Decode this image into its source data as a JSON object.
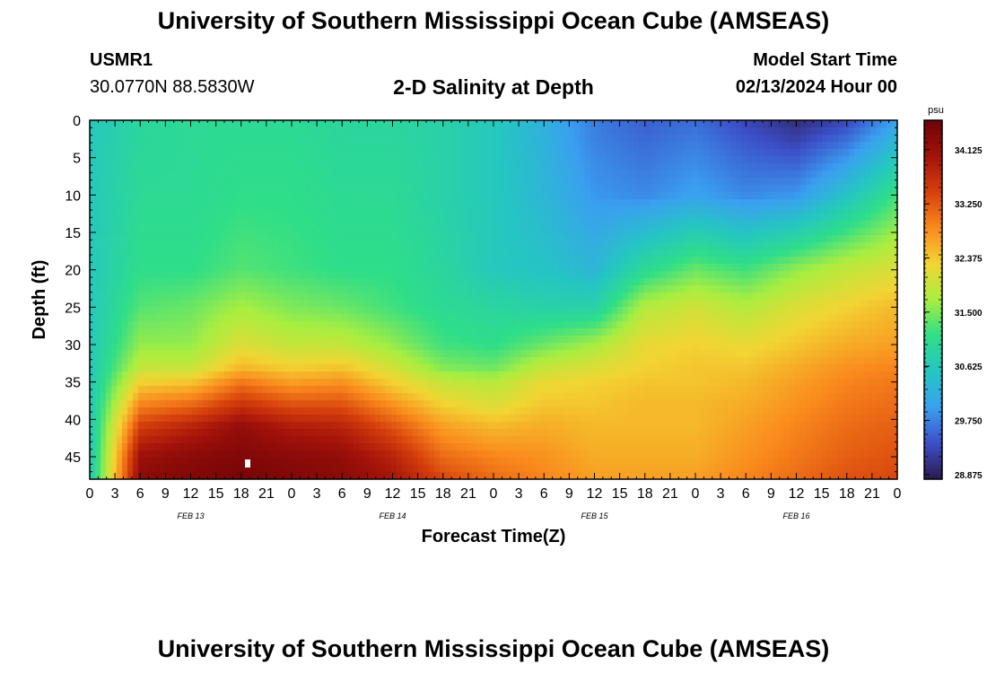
{
  "header": {
    "title": "University of Southern Mississippi Ocean Cube (AMSEAS)",
    "station": "USMR1",
    "coords": "30.0770N  88.5830W",
    "subtitle": "2-D Salinity at Depth",
    "model_start_label": "Model Start Time",
    "model_start_value": "02/13/2024 Hour 00"
  },
  "footer": {
    "title": "University of Southern Mississippi Ocean Cube (AMSEAS)"
  },
  "chart_data": {
    "type": "heatmap",
    "title": "2-D Salinity at Depth",
    "xlabel": "Forecast Time(Z)",
    "ylabel": "Depth (ft)",
    "x_tick_labels": [
      "0",
      "3",
      "6",
      "9",
      "12",
      "15",
      "18",
      "21",
      "0",
      "3",
      "6",
      "9",
      "12",
      "15",
      "18",
      "21",
      "0",
      "3",
      "6",
      "9",
      "12",
      "15",
      "18",
      "21",
      "0",
      "3",
      "6",
      "9",
      "12",
      "15",
      "18",
      "21",
      "0"
    ],
    "date_labels": [
      {
        "label": "FEB 13",
        "hour": 12
      },
      {
        "label": "FEB 14",
        "hour": 36
      },
      {
        "label": "FEB 15",
        "hour": 60
      },
      {
        "label": "FEB 16",
        "hour": 84
      }
    ],
    "xlim": [
      0,
      96
    ],
    "ylim": [
      0,
      48
    ],
    "y_ticks": [
      0,
      5,
      10,
      15,
      20,
      25,
      30,
      35,
      40,
      45
    ],
    "colorbar": {
      "unit": "psu",
      "range": [
        28.8,
        34.6
      ],
      "ticks": [
        "34.125",
        "33.250",
        "32.375",
        "31.500",
        "30.625",
        "29.750",
        "28.875"
      ],
      "colors": [
        "#2d1a4e",
        "#3c4fc8",
        "#3aa0f0",
        "#25c6c2",
        "#2fde88",
        "#a9ee40",
        "#f2d533",
        "#fa8a1d",
        "#d6400c",
        "#a4120a",
        "#6e0306"
      ]
    },
    "time_hours": [
      0,
      6,
      12,
      18,
      24,
      30,
      36,
      42,
      48,
      54,
      60,
      66,
      72,
      78,
      84,
      90,
      96
    ],
    "depths_ft": [
      0,
      10,
      20,
      25,
      30,
      33,
      35,
      38,
      41,
      45,
      48
    ],
    "salinity_psu": [
      [
        30.6,
        30.6,
        30.6,
        30.6,
        30.6,
        30.6,
        30.6,
        30.6,
        30.6,
        30.6,
        30.6
      ],
      [
        30.9,
        31.0,
        31.1,
        31.3,
        31.6,
        31.9,
        32.3,
        32.9,
        33.5,
        34.1,
        34.3
      ],
      [
        31.0,
        31.0,
        31.1,
        31.4,
        31.6,
        31.9,
        32.4,
        33.1,
        33.8,
        34.3,
        34.4
      ],
      [
        31.0,
        31.1,
        31.3,
        31.7,
        32.1,
        32.5,
        33.0,
        33.6,
        34.2,
        34.4,
        34.5
      ],
      [
        31.0,
        31.1,
        31.2,
        31.5,
        31.9,
        32.3,
        32.7,
        33.3,
        33.9,
        34.3,
        34.4
      ],
      [
        30.9,
        31.0,
        31.1,
        31.4,
        31.9,
        32.4,
        32.8,
        33.3,
        33.8,
        34.2,
        34.3
      ],
      [
        30.9,
        31.0,
        31.1,
        31.2,
        31.6,
        32.0,
        32.3,
        32.8,
        33.3,
        33.8,
        34.0
      ],
      [
        30.8,
        30.8,
        30.9,
        31.0,
        31.2,
        31.5,
        31.9,
        32.3,
        32.7,
        33.1,
        33.4
      ],
      [
        30.6,
        30.6,
        30.6,
        30.9,
        31.1,
        31.4,
        31.8,
        32.1,
        32.5,
        32.9,
        33.1
      ],
      [
        30.2,
        30.3,
        30.5,
        30.8,
        31.4,
        31.9,
        32.2,
        32.4,
        32.6,
        32.8,
        32.9
      ],
      [
        29.7,
        29.9,
        30.3,
        30.8,
        31.7,
        32.1,
        32.3,
        32.4,
        32.5,
        32.6,
        32.7
      ],
      [
        29.5,
        29.8,
        31.0,
        31.8,
        32.2,
        32.3,
        32.4,
        32.5,
        32.5,
        32.6,
        32.7
      ],
      [
        29.6,
        30.0,
        31.4,
        32.0,
        32.3,
        32.4,
        32.4,
        32.5,
        32.5,
        32.6,
        32.7
      ],
      [
        29.3,
        29.8,
        31.2,
        31.8,
        32.2,
        32.4,
        32.5,
        32.6,
        32.7,
        32.8,
        32.9
      ],
      [
        29.0,
        29.9,
        31.6,
        32.1,
        32.4,
        32.6,
        32.7,
        32.8,
        32.9,
        33.0,
        33.1
      ],
      [
        29.3,
        30.5,
        31.9,
        32.3,
        32.6,
        32.8,
        32.9,
        33.0,
        33.1,
        33.2,
        33.3
      ],
      [
        30.0,
        31.2,
        32.1,
        32.5,
        32.7,
        32.9,
        33.0,
        33.1,
        33.2,
        33.3,
        33.4
      ]
    ]
  }
}
